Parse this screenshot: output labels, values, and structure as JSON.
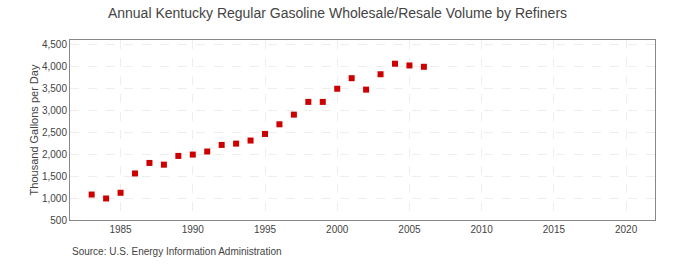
{
  "chart_data": {
    "type": "scatter",
    "title": "Annual Kentucky Regular Gasoline Wholesale/Resale Volume by Refiners",
    "ylabel": "Thousand Gallons per Day",
    "source": "Source: U.S. Energy Information Administration",
    "x": [
      1983,
      1984,
      1985,
      1986,
      1987,
      1988,
      1989,
      1990,
      1991,
      1992,
      1993,
      1994,
      1995,
      1996,
      1997,
      1998,
      1999,
      2000,
      2001,
      2002,
      2003,
      2004,
      2005,
      2006
    ],
    "values": [
      1080,
      990,
      1120,
      1560,
      1800,
      1760,
      1960,
      1990,
      2060,
      2210,
      2240,
      2310,
      2460,
      2680,
      2900,
      3190,
      3190,
      3490,
      3730,
      3470,
      3820,
      4060,
      4020,
      3990
    ],
    "color": "#cc0000",
    "marker": "square",
    "xlim": [
      1981.5,
      2022
    ],
    "ylim": [
      500,
      4600
    ],
    "xticks": [
      1985,
      1990,
      1995,
      2000,
      2005,
      2010,
      2015,
      2020
    ],
    "yticks": [
      500,
      {
        "value": 1000,
        "label": "1,000"
      },
      {
        "value": 1500,
        "label": "1,500"
      },
      {
        "value": 2000,
        "label": "2,000"
      },
      {
        "value": 2500,
        "label": "2,500"
      },
      {
        "value": 3000,
        "label": "3,000"
      },
      {
        "value": 3500,
        "label": "3,500"
      },
      {
        "value": 4000,
        "label": "4,000"
      },
      {
        "value": 4500,
        "label": "4,500"
      }
    ],
    "grid": true
  }
}
